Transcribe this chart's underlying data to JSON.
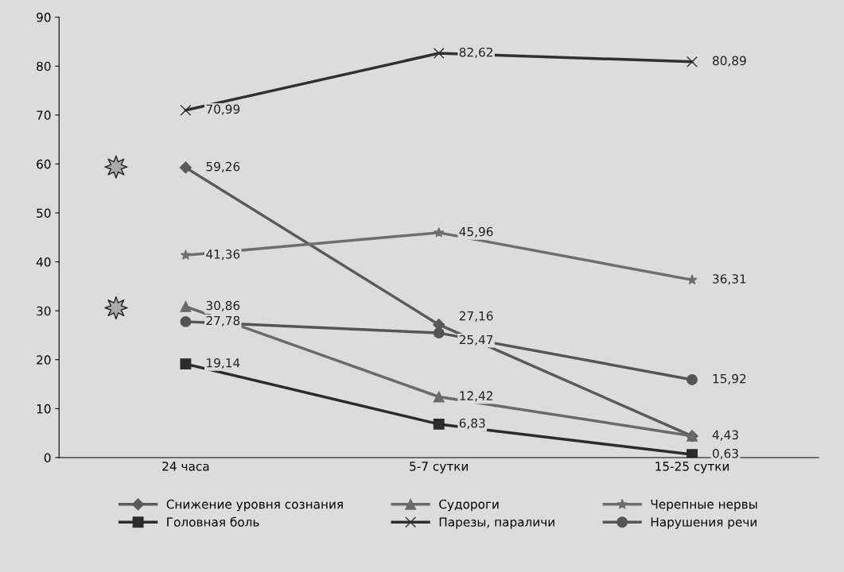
{
  "chart_data": {
    "type": "line",
    "categories": [
      "24 часа",
      "5-7 сутки",
      "15-25 сутки"
    ],
    "ylim": [
      0,
      90
    ],
    "yticks": [
      0,
      10,
      20,
      30,
      40,
      50,
      60,
      70,
      80,
      90
    ],
    "grid": false,
    "legend": "bottom",
    "series": [
      {
        "name": "Снижение уровня сознания",
        "color": "#5a5a5a",
        "marker": "diamond",
        "values": [
          59.26,
          27.16,
          4.4
        ],
        "value_labels": [
          "59,26",
          "27,16",
          null
        ]
      },
      {
        "name": "Головная боль",
        "color": "#2b2b2b",
        "marker": "square",
        "values": [
          19.14,
          6.83,
          0.63
        ],
        "value_labels": [
          "19,14",
          "6,83",
          "0,63"
        ]
      },
      {
        "name": "Судороги",
        "color": "#6a6a6a",
        "marker": "triangle",
        "values": [
          30.86,
          12.42,
          4.43
        ],
        "value_labels": [
          "30,86",
          "12,42",
          "4,43"
        ]
      },
      {
        "name": "Парезы, параличи",
        "color": "#303030",
        "marker": "cross",
        "values": [
          70.99,
          82.62,
          80.89
        ],
        "value_labels": [
          "70,99",
          "82,62",
          "80,89"
        ]
      },
      {
        "name": "Черепные нервы",
        "color": "#6e6e6e",
        "marker": "star",
        "values": [
          41.36,
          45.96,
          36.31
        ],
        "value_labels": [
          "41,36",
          "45,96",
          "36,31"
        ]
      },
      {
        "name": "Нарушения речи",
        "color": "#555555",
        "marker": "circle",
        "values": [
          27.78,
          25.47,
          15.92
        ],
        "value_labels": [
          "27,78",
          "25,47",
          "15,92"
        ]
      }
    ]
  }
}
